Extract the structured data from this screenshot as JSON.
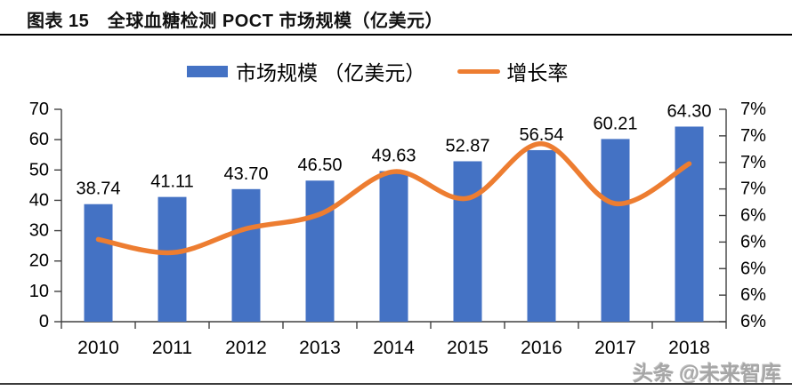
{
  "header": {
    "title": "图表 15　全球血糖检测 POCT 市场规模（亿美元）"
  },
  "legend": {
    "items": [
      {
        "label": "市场规模 （亿美元）",
        "marker": "bar-swatch",
        "color": "#4472C4"
      },
      {
        "label": "增长率",
        "marker": "line-swatch",
        "color": "#ED7D31"
      }
    ]
  },
  "chart_data": {
    "type": "combo",
    "categories": [
      "2010",
      "2011",
      "2012",
      "2013",
      "2014",
      "2015",
      "2016",
      "2017",
      "2018"
    ],
    "series": [
      {
        "name": "市场规模 （亿美元）",
        "chart_type": "bar",
        "axis": "left",
        "color": "#4472C4",
        "values": [
          38.74,
          41.11,
          43.7,
          46.5,
          49.63,
          52.87,
          56.54,
          60.21,
          64.3
        ],
        "data_labels": [
          "38.74",
          "41.11",
          "43.70",
          "46.50",
          "49.63",
          "52.87",
          "56.54",
          "60.21",
          "64.30"
        ]
      },
      {
        "name": "增长率",
        "chart_type": "line",
        "axis": "right",
        "color": "#ED7D31",
        "unit": "%",
        "values": [
          6.22,
          6.12,
          6.3,
          6.41,
          6.73,
          6.53,
          6.94,
          6.49,
          6.79
        ]
      }
    ],
    "left_axis": {
      "min": 0,
      "max": 70,
      "step": 10,
      "tick_labels": [
        "70",
        "60",
        "50",
        "40",
        "30",
        "20",
        "10",
        "0"
      ]
    },
    "right_axis": {
      "min": 5.6,
      "max": 7.2,
      "step": 0.2,
      "tick_labels": [
        "7%",
        "7%",
        "7%",
        "7%",
        "6%",
        "6%",
        "6%",
        "6%",
        "6%"
      ]
    },
    "grid": false,
    "legend_position": "top",
    "data_labels_shown": true
  },
  "watermark": {
    "text": "头条 @未来智库"
  }
}
